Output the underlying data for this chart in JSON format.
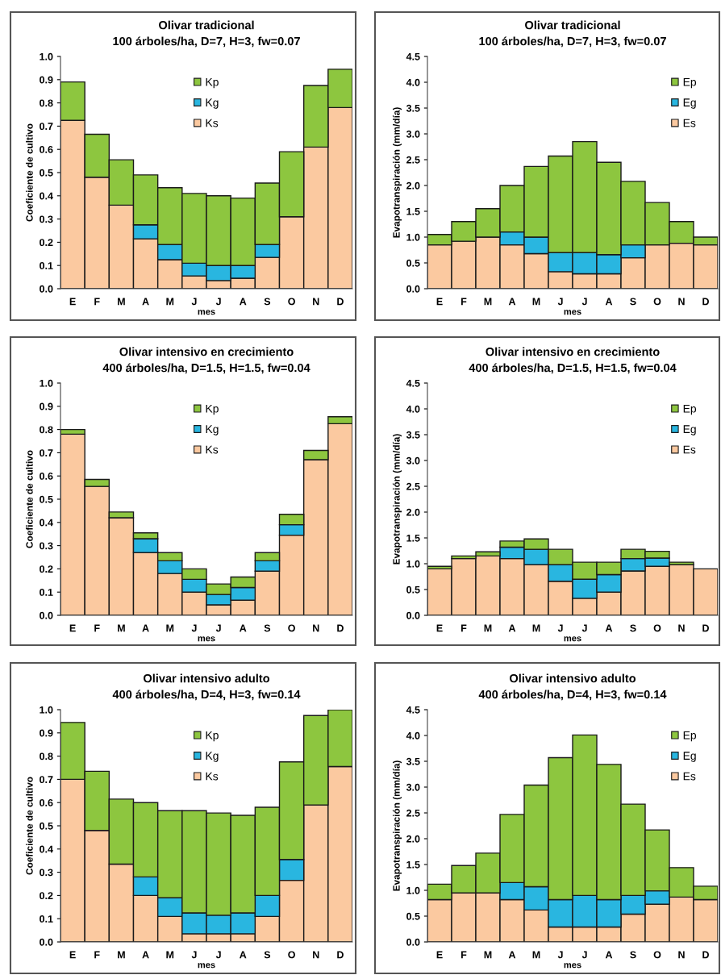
{
  "chart_data": [
    {
      "type": "bar",
      "stacked": true,
      "title": "Olivar tradicional\n100 árboles/ha, D=7, H=3, fw=0.07",
      "xlabel": "mes",
      "ylabel": "Coeficiente de cultivo",
      "categories": [
        "E",
        "F",
        "M",
        "A",
        "M",
        "J",
        "J",
        "A",
        "S",
        "O",
        "N",
        "D"
      ],
      "series": [
        {
          "name": "Ks",
          "color": "#fbc9a0",
          "values": [
            0.725,
            0.48,
            0.36,
            0.215,
            0.125,
            0.055,
            0.035,
            0.045,
            0.135,
            0.31,
            0.61,
            0.78
          ]
        },
        {
          "name": "Kg",
          "color": "#29b6e0",
          "values": [
            null,
            null,
            null,
            0.06,
            0.065,
            0.055,
            0.065,
            0.055,
            0.055,
            null,
            null,
            null
          ]
        },
        {
          "name": "Kp",
          "color": "#8dc63f",
          "values": [
            0.165,
            0.185,
            0.195,
            0.215,
            0.245,
            0.3,
            0.3,
            0.29,
            0.265,
            0.28,
            0.265,
            0.165
          ]
        }
      ],
      "ylim": [
        0,
        1
      ],
      "yticks": [
        {
          "value": 0,
          "label": "0.0"
        },
        0.1,
        0.2,
        0.3,
        0.4,
        0.5,
        0.6,
        0.7,
        0.8,
        0.9,
        {
          "value": 1,
          "label": "1.0"
        }
      ],
      "legend": "top center",
      "grid": false
    },
    {
      "type": "bar",
      "stacked": true,
      "title": "Olivar tradicional\n100 árboles/ha, D=7, H=3, fw=0.07",
      "xlabel": "mes",
      "ylabel": "Evapotranspiración (mm/día)",
      "categories": [
        "E",
        "F",
        "M",
        "A",
        "M",
        "J",
        "J",
        "A",
        "S",
        "O",
        "N",
        "D"
      ],
      "series": [
        {
          "name": "Es",
          "color": "#fbc9a0",
          "values": [
            0.85,
            0.92,
            1.0,
            0.85,
            0.68,
            0.33,
            0.29,
            0.29,
            0.6,
            0.85,
            0.88,
            0.85
          ]
        },
        {
          "name": "Eg",
          "color": "#29b6e0",
          "values": [
            null,
            null,
            null,
            0.25,
            0.32,
            0.37,
            0.41,
            0.37,
            0.25,
            null,
            null,
            null
          ]
        },
        {
          "name": "Ep",
          "color": "#8dc63f",
          "values": [
            0.2,
            0.38,
            0.55,
            0.9,
            1.37,
            1.87,
            2.15,
            1.79,
            1.23,
            0.82,
            0.42,
            0.15
          ]
        }
      ],
      "ylim": [
        0,
        4.5
      ],
      "yticks": [
        {
          "value": 0,
          "label": "0.0"
        },
        0.5,
        {
          "value": 1,
          "label": "1.0"
        },
        1.5,
        {
          "value": 2,
          "label": "2.0"
        },
        2.5,
        {
          "value": 3,
          "label": "3.0"
        },
        3.5,
        {
          "value": 4,
          "label": "4.0"
        },
        4.5
      ],
      "legend": "top right",
      "grid": false
    },
    {
      "type": "bar",
      "stacked": true,
      "title": "Olivar intensivo en crecimiento\n400 árboles/ha, D=1.5, H=1.5, fw=0.04",
      "xlabel": "mes",
      "ylabel": "Coeficiente de cultivo",
      "categories": [
        "E",
        "F",
        "M",
        "A",
        "M",
        "J",
        "J",
        "A",
        "S",
        "O",
        "N",
        "D"
      ],
      "series": [
        {
          "name": "Ks",
          "color": "#fbc9a0",
          "values": [
            0.78,
            0.555,
            0.42,
            0.27,
            0.18,
            0.1,
            0.045,
            0.065,
            0.19,
            0.345,
            0.67,
            0.825
          ]
        },
        {
          "name": "Kg",
          "color": "#29b6e0",
          "values": [
            null,
            null,
            null,
            0.06,
            0.055,
            0.055,
            0.045,
            0.055,
            0.045,
            0.045,
            null,
            null
          ]
        },
        {
          "name": "Kp",
          "color": "#8dc63f",
          "values": [
            0.02,
            0.03,
            0.025,
            0.025,
            0.035,
            0.045,
            0.045,
            0.045,
            0.035,
            0.045,
            0.04,
            0.03
          ]
        }
      ],
      "ylim": [
        0,
        1
      ],
      "yticks": [
        {
          "value": 0,
          "label": "0.0"
        },
        0.1,
        0.2,
        0.3,
        0.4,
        0.5,
        0.6,
        0.7,
        0.8,
        0.9,
        {
          "value": 1,
          "label": "1.0"
        }
      ],
      "legend": "top center",
      "grid": false
    },
    {
      "type": "bar",
      "stacked": true,
      "title": "Olivar intensivo en crecimiento\n400 árboles/ha, D=1.5, H=1.5, fw=0.04",
      "xlabel": "mes",
      "ylabel": "Evapotranspiración (mm/día)",
      "categories": [
        "E",
        "F",
        "M",
        "A",
        "M",
        "J",
        "J",
        "A",
        "S",
        "O",
        "N",
        "D"
      ],
      "series": [
        {
          "name": "Es",
          "color": "#fbc9a0",
          "values": [
            0.9,
            1.1,
            1.15,
            1.1,
            0.98,
            0.66,
            0.33,
            0.45,
            0.86,
            0.95,
            0.98,
            0.9
          ]
        },
        {
          "name": "Eg",
          "color": "#29b6e0",
          "values": [
            null,
            null,
            null,
            0.22,
            0.3,
            0.32,
            0.37,
            0.34,
            0.24,
            0.16,
            null,
            null
          ]
        },
        {
          "name": "Ep",
          "color": "#8dc63f",
          "values": [
            0.05,
            0.05,
            0.08,
            0.12,
            0.2,
            0.3,
            0.33,
            0.24,
            0.18,
            0.13,
            0.05,
            null
          ]
        }
      ],
      "ylim": [
        0,
        4.5
      ],
      "yticks": [
        {
          "value": 0,
          "label": "0.0"
        },
        0.5,
        {
          "value": 1,
          "label": "1.0"
        },
        1.5,
        {
          "value": 2,
          "label": "2.0"
        },
        2.5,
        {
          "value": 3,
          "label": "3.0"
        },
        3.5,
        {
          "value": 4,
          "label": "4.0"
        },
        4.5
      ],
      "legend": "top right",
      "grid": false
    },
    {
      "type": "bar",
      "stacked": true,
      "title": "Olivar intensivo adulto\n400 árboles/ha, D=4, H=3, fw=0.14",
      "xlabel": "mes",
      "ylabel": "Coeficiente de cultivo",
      "categories": [
        "E",
        "F",
        "M",
        "A",
        "M",
        "J",
        "J",
        "A",
        "S",
        "O",
        "N",
        "D"
      ],
      "series": [
        {
          "name": "Ks",
          "color": "#fbc9a0",
          "values": [
            0.7,
            0.48,
            0.335,
            0.2,
            0.11,
            0.035,
            0.035,
            0.035,
            0.11,
            0.265,
            0.59,
            0.755
          ]
        },
        {
          "name": "Kg",
          "color": "#29b6e0",
          "values": [
            null,
            null,
            null,
            0.08,
            0.08,
            0.09,
            0.08,
            0.09,
            0.09,
            0.09,
            null,
            null
          ]
        },
        {
          "name": "Kp",
          "color": "#8dc63f",
          "values": [
            0.245,
            0.255,
            0.28,
            0.32,
            0.375,
            0.44,
            0.44,
            0.42,
            0.38,
            0.42,
            0.385,
            0.245
          ]
        }
      ],
      "ylim": [
        0,
        1
      ],
      "yticks": [
        {
          "value": 0,
          "label": "0.0"
        },
        0.1,
        0.2,
        0.3,
        0.4,
        0.5,
        0.6,
        0.7,
        0.8,
        0.9,
        {
          "value": 1,
          "label": "1.0"
        }
      ],
      "legend": "top center",
      "grid": false
    },
    {
      "type": "bar",
      "stacked": true,
      "title": "Olivar intensivo adulto\n400 árboles/ha, D=4, H=3, fw=0.14",
      "xlabel": "mes",
      "ylabel": "Evapotranspiración (mm/día)",
      "categories": [
        "E",
        "F",
        "M",
        "A",
        "M",
        "J",
        "J",
        "A",
        "S",
        "O",
        "N",
        "D"
      ],
      "series": [
        {
          "name": "Es",
          "color": "#fbc9a0",
          "values": [
            0.82,
            0.95,
            0.95,
            0.82,
            0.62,
            0.29,
            0.29,
            0.29,
            0.54,
            0.73,
            0.87,
            0.82
          ]
        },
        {
          "name": "Eg",
          "color": "#29b6e0",
          "values": [
            null,
            null,
            null,
            0.33,
            0.45,
            0.53,
            0.61,
            0.53,
            0.36,
            0.26,
            null,
            null
          ]
        },
        {
          "name": "Ep",
          "color": "#8dc63f",
          "values": [
            0.3,
            0.53,
            0.77,
            1.32,
            1.97,
            2.75,
            3.11,
            2.62,
            1.77,
            1.18,
            0.57,
            0.26
          ]
        }
      ],
      "ylim": [
        0,
        4.5
      ],
      "yticks": [
        {
          "value": 0,
          "label": "0.0"
        },
        0.5,
        {
          "value": 1,
          "label": "1.0"
        },
        1.5,
        {
          "value": 2,
          "label": "2.0"
        },
        2.5,
        {
          "value": 3,
          "label": "3.0"
        },
        3.5,
        {
          "value": 4,
          "label": "4.0"
        },
        4.5
      ],
      "legend": "top right",
      "grid": false
    }
  ]
}
